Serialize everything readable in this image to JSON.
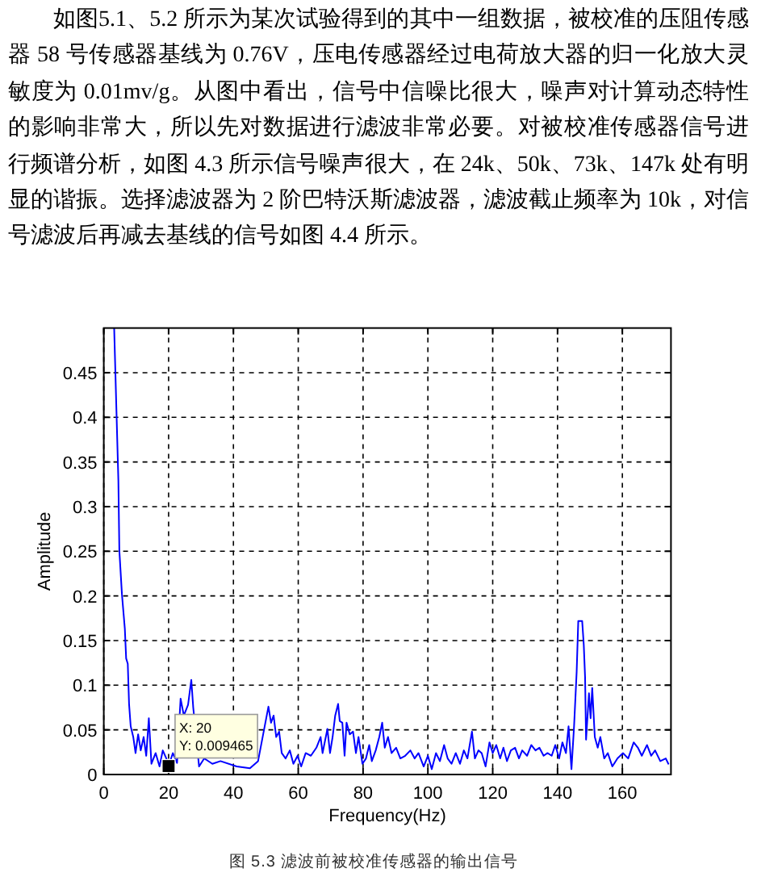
{
  "chart_data": {
    "type": "line",
    "title": "图 5.3 滤波前被校准传感器的输出信号",
    "xlabel": "Frequency(Hz)",
    "ylabel": "Amplitude",
    "color": "#0000ff",
    "x": [
      3.2,
      4.5,
      4.8,
      5.6,
      6.5,
      6.9,
      7.4,
      7.8,
      8.3,
      9.1,
      9.8,
      10.6,
      11.4,
      12.3,
      13.1,
      13.9,
      14.7,
      16.0,
      17.2,
      18.2,
      19.3,
      20,
      21.3,
      22.6,
      23.7,
      24.7,
      26.0,
      27.0,
      27.6,
      29.4,
      31.0,
      33.5,
      36.0,
      41.0,
      45.1,
      47.6,
      50.8,
      51.6,
      52.4,
      53.2,
      54.1,
      54.9,
      56.1,
      57.4,
      58.5,
      59.8,
      60.9,
      62.3,
      63.9,
      65.6,
      66.9,
      67.5,
      69.0,
      69.8,
      70.6,
      71.4,
      72.3,
      72.8,
      73.6,
      74.3,
      74.9,
      75.9,
      76.9,
      77.8,
      78.6,
      79.8,
      80.9,
      81.9,
      82.7,
      83.9,
      85.0,
      85.9,
      86.7,
      87.7,
      88.8,
      90.2,
      91.5,
      93.0,
      94.6,
      95.9,
      97.1,
      98.7,
      100.0,
      101.2,
      102.5,
      103.7,
      105.0,
      106.1,
      107.3,
      108.6,
      109.9,
      111.1,
      112.2,
      113.6,
      114.5,
      115.6,
      116.6,
      117.8,
      119.0,
      120.0,
      121.1,
      122.3,
      123.3,
      124.4,
      125.6,
      126.9,
      128.1,
      129.1,
      130.6,
      131.9,
      133.2,
      134.4,
      135.7,
      136.9,
      138.2,
      139.3,
      140.5,
      141.5,
      142.6,
      143.4,
      144.3,
      145.1,
      145.9,
      146.4,
      147.6,
      148.1,
      148.5,
      148.8,
      149.7,
      150.2,
      150.7,
      151.5,
      152.4,
      153.2,
      154.4,
      155.5,
      156.9,
      158.5,
      160.2,
      161.8,
      163.5,
      164.8,
      166.0,
      167.6,
      168.9,
      170.1,
      171.7,
      173.4,
      174.2
    ],
    "values": [
      0.5,
      0.329,
      0.251,
      0.202,
      0.163,
      0.13,
      0.124,
      0.079,
      0.054,
      0.042,
      0.024,
      0.045,
      0.027,
      0.042,
      0.021,
      0.063,
      0.012,
      0.024,
      0.009,
      0.027,
      0.018,
      0.009465,
      0.024,
      0.013,
      0.085,
      0.066,
      0.078,
      0.106,
      0.075,
      0.009,
      0.018,
      0.012,
      0.015,
      0.009,
      0.007,
      0.015,
      0.076,
      0.058,
      0.066,
      0.042,
      0.048,
      0.024,
      0.018,
      0.027,
      0.012,
      0.021,
      0.009,
      0.024,
      0.021,
      0.03,
      0.042,
      0.024,
      0.051,
      0.024,
      0.042,
      0.066,
      0.079,
      0.06,
      0.058,
      0.021,
      0.058,
      0.045,
      0.048,
      0.024,
      0.042,
      0.012,
      0.018,
      0.033,
      0.015,
      0.027,
      0.042,
      0.058,
      0.03,
      0.042,
      0.024,
      0.03,
      0.018,
      0.021,
      0.027,
      0.018,
      0.024,
      0.009,
      0.021,
      0.006,
      0.024,
      0.015,
      0.033,
      0.018,
      0.012,
      0.024,
      0.012,
      0.027,
      0.018,
      0.048,
      0.018,
      0.027,
      0.024,
      0.009,
      0.036,
      0.024,
      0.033,
      0.018,
      0.03,
      0.015,
      0.027,
      0.03,
      0.018,
      0.027,
      0.021,
      0.033,
      0.027,
      0.03,
      0.021,
      0.024,
      0.021,
      0.033,
      0.018,
      0.036,
      0.024,
      0.054,
      0.006,
      0.054,
      0.115,
      0.172,
      0.172,
      0.145,
      0.109,
      0.039,
      0.091,
      0.063,
      0.097,
      0.042,
      0.03,
      0.042,
      0.018,
      0.024,
      0.009,
      0.018,
      0.024,
      0.018,
      0.036,
      0.03,
      0.021,
      0.033,
      0.021,
      0.027,
      0.015,
      0.018,
      0.012
    ],
    "xlim": [
      0,
      175
    ],
    "ylim": [
      0,
      0.5
    ],
    "xticks": [
      0,
      20,
      40,
      60,
      80,
      100,
      120,
      140,
      160
    ],
    "yticks": [
      0,
      0.05,
      0.1,
      0.15,
      0.2,
      0.25,
      0.3,
      0.35,
      0.4,
      0.45
    ],
    "grid": true,
    "annotations": [
      "如图5.1、5.2 所示为某次试验得到的其中一组数据，被校准的压阻传感器 58 号传感器基线为 0.76V，压电传感器经过电荷放大器的归一化放大灵敏度为 0.01mv/g。从图中看出，信号中信噪比很大，噪声对计算动态特性的影响非常大，所以先对数据进行滤波非常必要。对被校准传感器信号进行频谱分析，如图 4.3 所示信号噪声很大，在 24k、50k、73k、147k 处有明显的谐振。选择滤波器为 2 阶巴特沃斯滤波器，滤波截止频率为 10k，对信号滤波后再减去基线的信号如图 4.4 所示。",
      {
        "text": "X: 20\nY: 0.009465",
        "x": 20,
        "y": 0.009465
      }
    ]
  }
}
